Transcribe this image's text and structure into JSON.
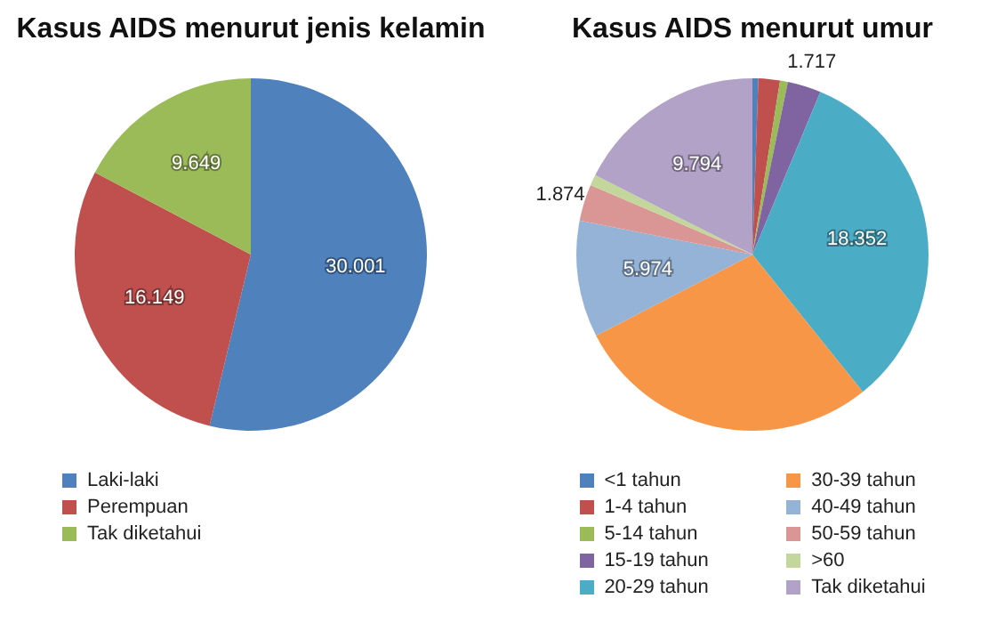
{
  "chart_data": [
    {
      "type": "pie",
      "title": "Kasus AIDS menurut jenis kelamin",
      "categories": [
        "Laki-laki",
        "Perempuan",
        "Tak diketahui"
      ],
      "values": [
        30001,
        16149,
        9649
      ],
      "colors": [
        "#4f81bd",
        "#c0504d",
        "#9bbb59"
      ],
      "value_labels": [
        "30.001",
        "16.149",
        "9.649"
      ],
      "legend": "bottom"
    },
    {
      "type": "pie",
      "title": "Kasus AIDS menurut umur",
      "categories": [
        "<1 tahun",
        "1-4 tahun",
        "5-14 tahun",
        "15-19 tahun",
        "20-29 tahun",
        "30-39 tahun",
        "40-49 tahun",
        "50-59 tahun",
        ">60",
        "Tak diketahui"
      ],
      "values": [
        300,
        1100,
        400,
        1717,
        18352,
        15700,
        5974,
        1874,
        550,
        9794
      ],
      "colors": [
        "#4f81bd",
        "#c0504d",
        "#9bbb59",
        "#8064a2",
        "#4bacc6",
        "#f79646",
        "#95b3d7",
        "#d99694",
        "#c3d69b",
        "#b2a2c7"
      ],
      "value_labels": [
        null,
        null,
        null,
        "1.717",
        "18.352",
        null,
        "5.974",
        "1.874",
        null,
        "9.794"
      ],
      "legend": "bottom"
    }
  ]
}
